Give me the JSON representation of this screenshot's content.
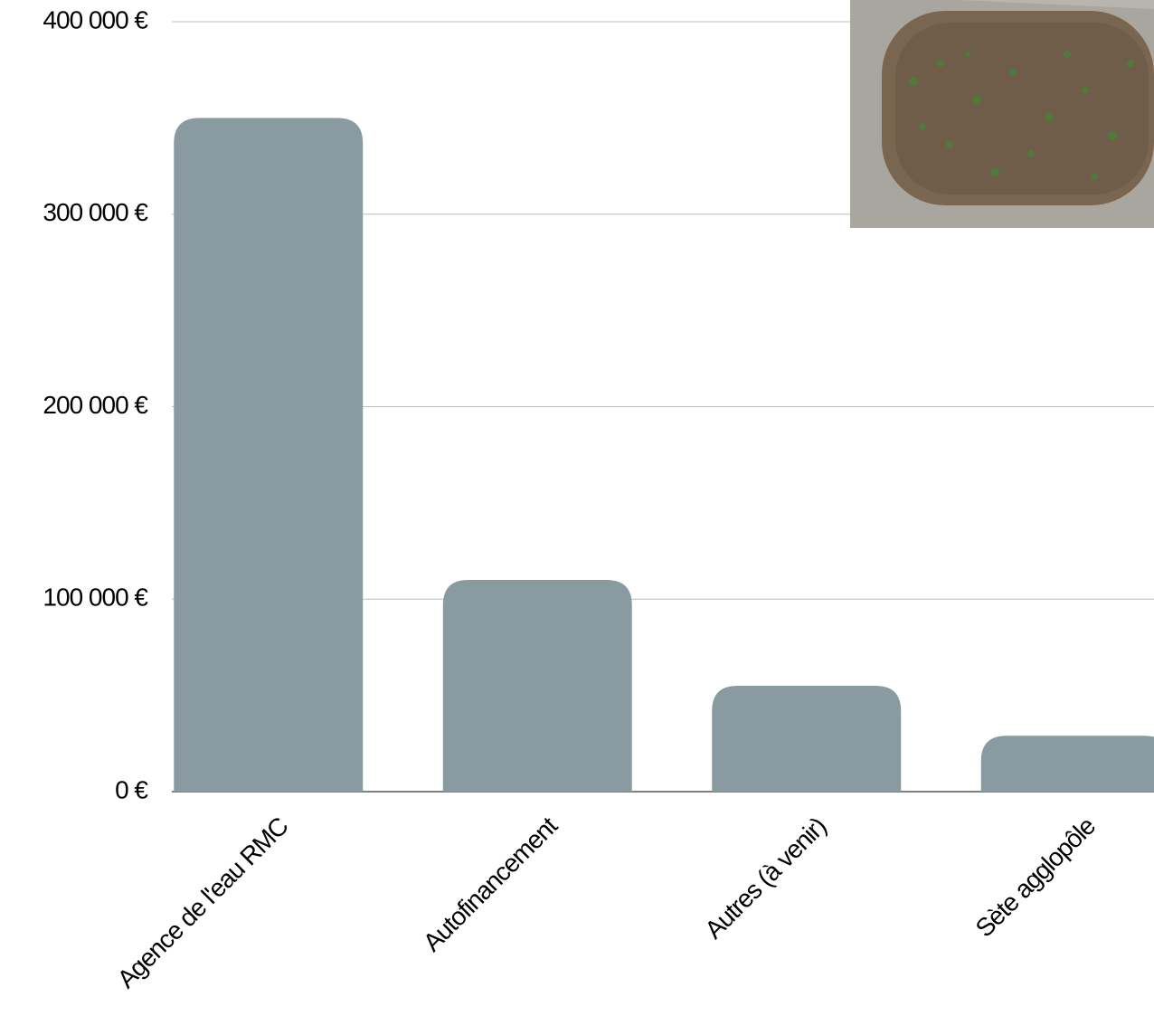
{
  "chart_data": {
    "type": "bar",
    "categories": [
      "Agence de l'eau RMC",
      "Autofinancement",
      "Autres (à venir)",
      "Sète agglopôle"
    ],
    "values": [
      350000,
      110000,
      55000,
      29000
    ],
    "color": "#8a9aa1",
    "ylim": [
      0,
      400000
    ],
    "yticks": [
      {
        "value": 0,
        "label": "0 €"
      },
      {
        "value": 100000,
        "label": "100 000 €"
      },
      {
        "value": 200000,
        "label": "200 000 €"
      },
      {
        "value": 300000,
        "label": "300 000 €"
      },
      {
        "value": 400000,
        "label": "400 000 €"
      }
    ],
    "grid": true
  }
}
